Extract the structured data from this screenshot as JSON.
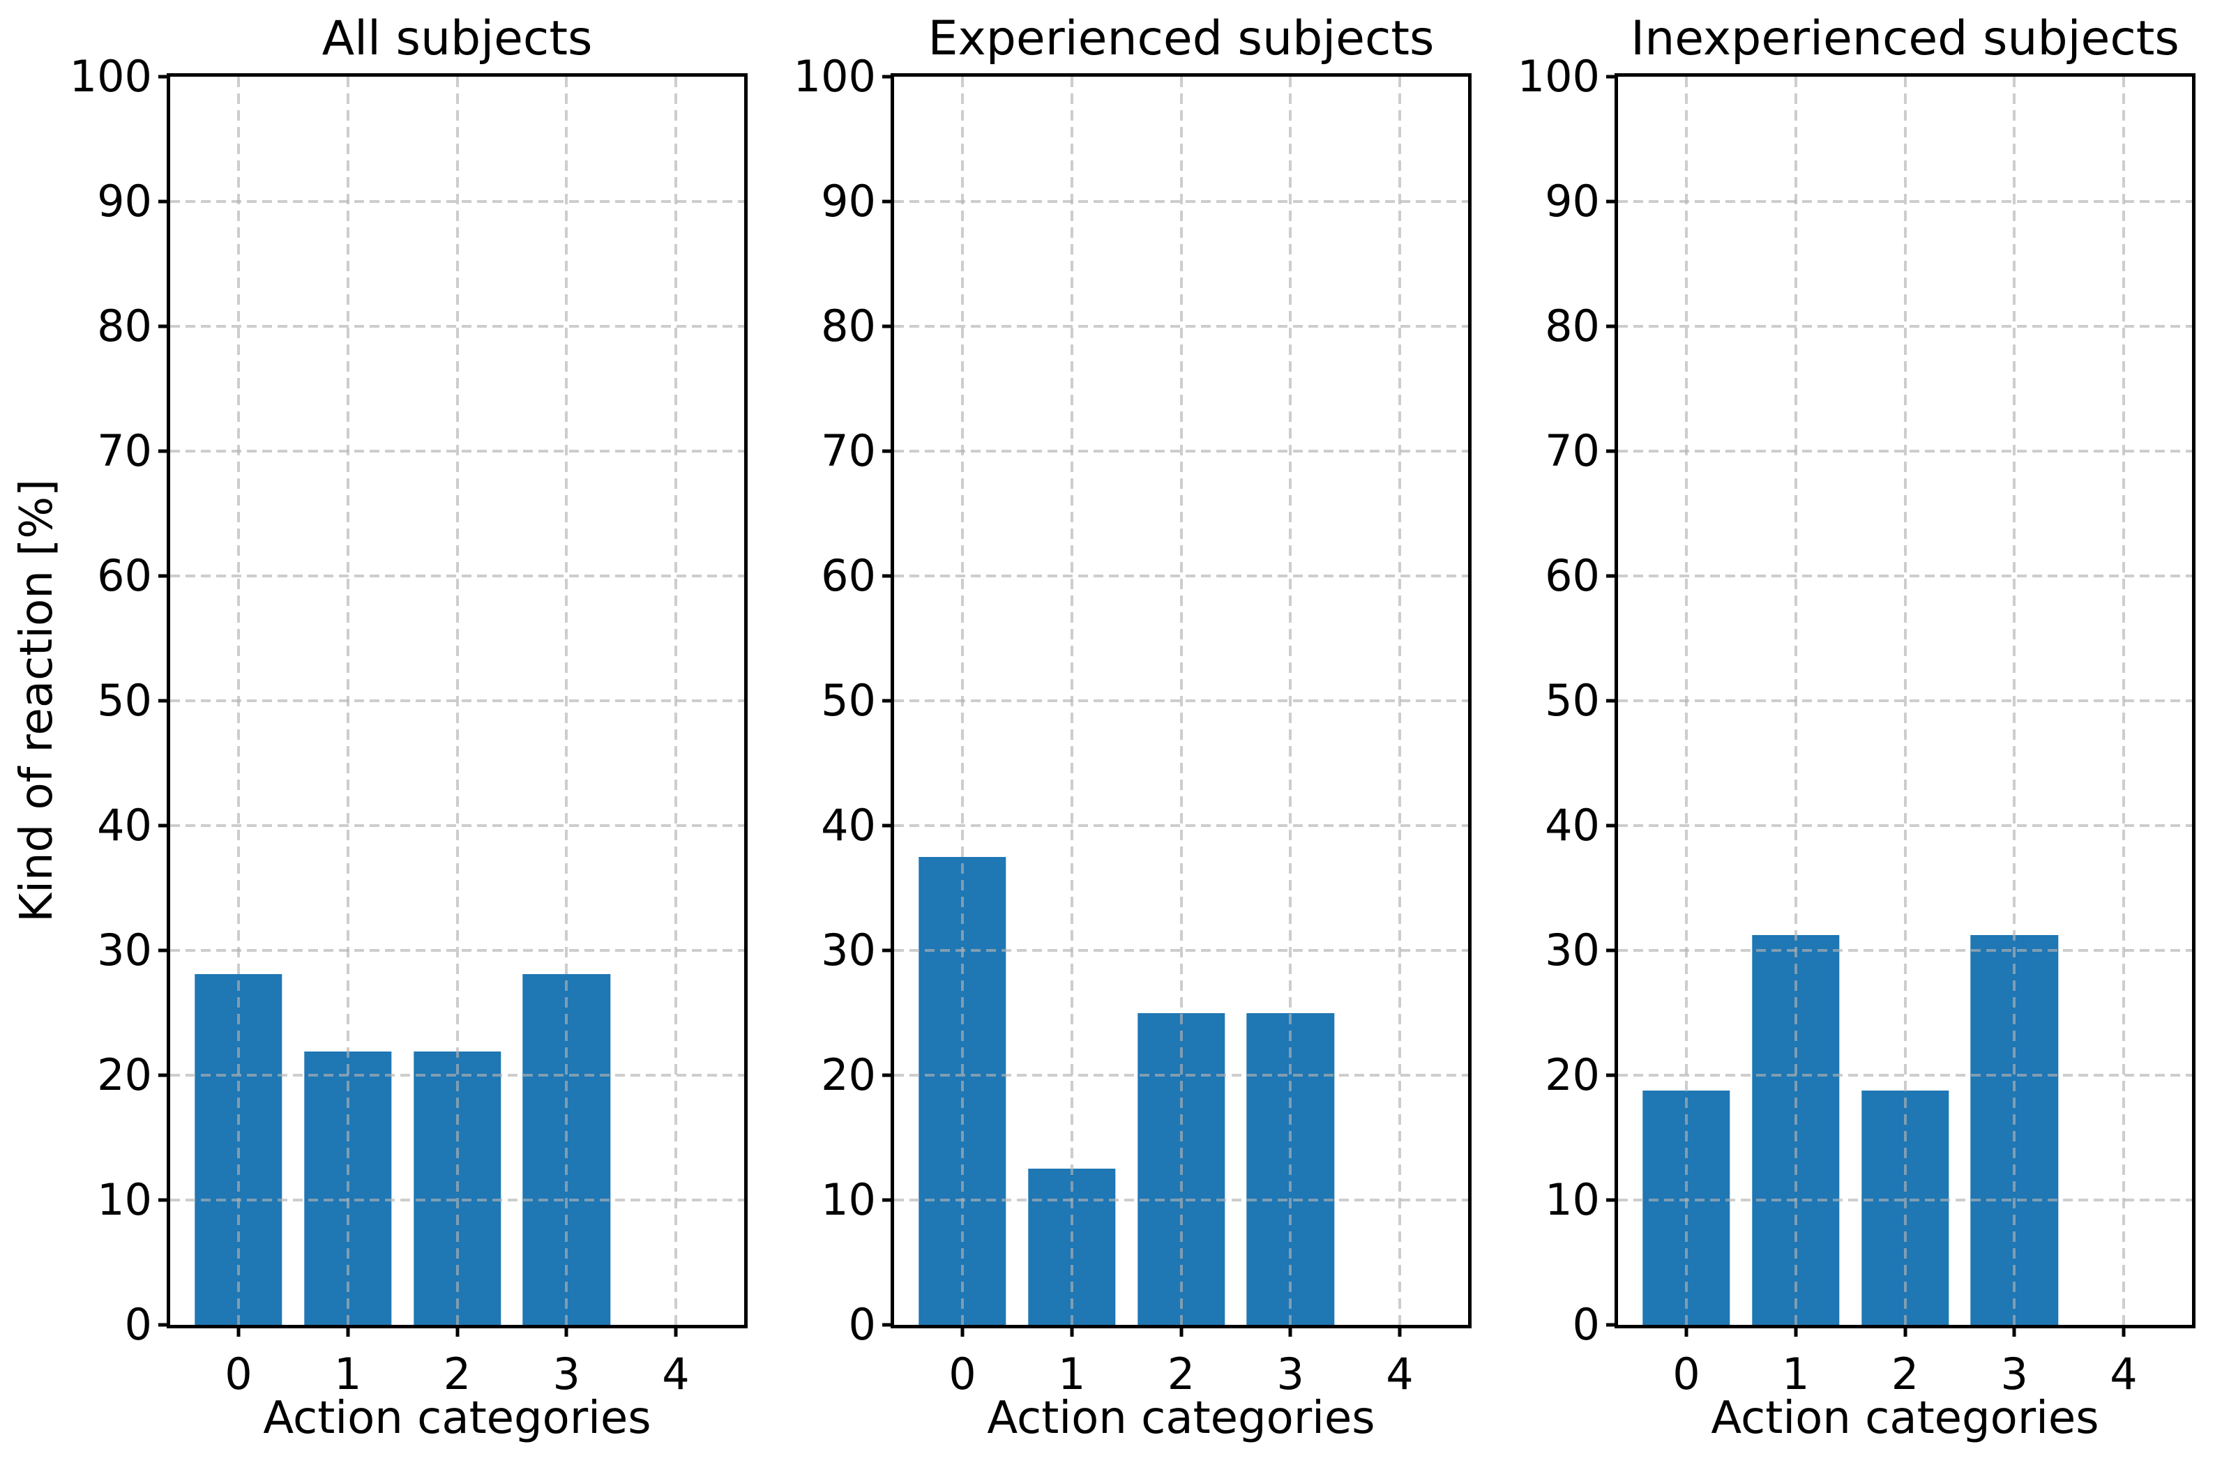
{
  "figure": {
    "background": "#ffffff",
    "axis_color": "#000000",
    "grid_style": "dashed",
    "grid_color": "#d2d2d2"
  },
  "chart_data": [
    {
      "type": "bar",
      "title": "All subjects",
      "xlabel": "Action categories",
      "ylabel": "Kind of reaction [%]",
      "categories": [
        0,
        1,
        2,
        3,
        4
      ],
      "values": [
        28.125,
        21.875,
        21.875,
        28.125,
        0
      ],
      "ylim": [
        0,
        100
      ],
      "yticks": [
        0,
        10,
        20,
        30,
        40,
        50,
        60,
        70,
        80,
        90,
        100
      ],
      "xlim": [
        -0.625,
        4.625
      ],
      "bar_width": 0.8,
      "bar_color": "#1f77b4",
      "grid": true,
      "legend": false
    },
    {
      "type": "bar",
      "title": "Experienced subjects",
      "xlabel": "Action categories",
      "ylabel": "",
      "categories": [
        0,
        1,
        2,
        3,
        4
      ],
      "values": [
        37.5,
        12.5,
        25,
        25,
        0
      ],
      "ylim": [
        0,
        100
      ],
      "yticks": [
        0,
        10,
        20,
        30,
        40,
        50,
        60,
        70,
        80,
        90,
        100
      ],
      "xlim": [
        -0.625,
        4.625
      ],
      "bar_width": 0.8,
      "bar_color": "#1f77b4",
      "grid": true,
      "legend": false
    },
    {
      "type": "bar",
      "title": "Inexperienced subjects",
      "xlabel": "Action categories",
      "ylabel": "",
      "categories": [
        0,
        1,
        2,
        3,
        4
      ],
      "values": [
        18.75,
        31.25,
        18.75,
        31.25,
        0
      ],
      "ylim": [
        0,
        100
      ],
      "yticks": [
        0,
        10,
        20,
        30,
        40,
        50,
        60,
        70,
        80,
        90,
        100
      ],
      "xlim": [
        -0.625,
        4.625
      ],
      "bar_width": 0.8,
      "bar_color": "#1f77b4",
      "grid": true,
      "legend": false
    }
  ]
}
